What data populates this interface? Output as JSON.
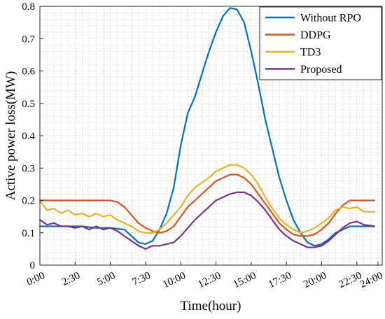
{
  "chart_data": {
    "type": "line",
    "xlabel": "Time(hour)",
    "ylabel": "Active power loss(MW)",
    "x_tick_labels": [
      "0:00",
      "2:30",
      "5:00",
      "7:30",
      "10:00",
      "12:30",
      "15:00",
      "17:30",
      "20:00",
      "22:30",
      "24:00"
    ],
    "x_tick_values": [
      0,
      2.5,
      5,
      7.5,
      10,
      12.5,
      15,
      17.5,
      20,
      22.5,
      24
    ],
    "xlim": [
      0,
      24.3
    ],
    "ylim": [
      0,
      0.8
    ],
    "y_tick_labels": [
      "0",
      "0.1",
      "0.2",
      "0.3",
      "0.4",
      "0.5",
      "0.6",
      "0.7",
      "0.8"
    ],
    "y_tick_values": [
      0,
      0.1,
      0.2,
      0.3,
      0.4,
      0.5,
      0.6,
      0.7,
      0.8
    ],
    "grid": "dotted",
    "legend_position": "top-right",
    "series": [
      {
        "name": "Without RPO",
        "color": "#0072BD",
        "x": [
          0,
          1,
          2,
          3,
          4,
          5,
          6,
          6.5,
          7,
          7.5,
          8,
          8.5,
          9,
          9.5,
          10,
          10.5,
          11,
          11.5,
          12,
          12.5,
          13,
          13.5,
          14,
          14.5,
          15,
          15.5,
          16,
          16.5,
          17,
          17.5,
          18,
          18.5,
          19,
          19.5,
          20,
          20.5,
          21,
          22,
          23,
          23.75
        ],
        "values": [
          0.12,
          0.12,
          0.12,
          0.12,
          0.115,
          0.115,
          0.11,
          0.09,
          0.07,
          0.065,
          0.075,
          0.11,
          0.16,
          0.24,
          0.37,
          0.47,
          0.52,
          0.59,
          0.66,
          0.72,
          0.77,
          0.795,
          0.79,
          0.75,
          0.66,
          0.56,
          0.45,
          0.36,
          0.27,
          0.2,
          0.14,
          0.1,
          0.07,
          0.06,
          0.065,
          0.08,
          0.1,
          0.12,
          0.12,
          0.12
        ]
      },
      {
        "name": "DDPG",
        "color": "#D95319",
        "x": [
          0,
          1,
          2,
          3,
          4,
          5,
          5.5,
          6,
          6.5,
          7,
          7.5,
          8,
          8.5,
          9,
          9.5,
          10,
          10.5,
          11,
          11.5,
          12,
          12.5,
          13,
          13.5,
          14,
          14.5,
          15,
          15.5,
          16,
          16.5,
          17,
          17.5,
          18,
          18.5,
          19,
          19.5,
          20,
          20.5,
          21,
          21.5,
          22,
          23,
          23.75
        ],
        "values": [
          0.2,
          0.2,
          0.2,
          0.2,
          0.2,
          0.2,
          0.195,
          0.18,
          0.155,
          0.13,
          0.115,
          0.105,
          0.1,
          0.105,
          0.12,
          0.15,
          0.18,
          0.2,
          0.22,
          0.24,
          0.26,
          0.27,
          0.28,
          0.28,
          0.27,
          0.25,
          0.22,
          0.19,
          0.16,
          0.13,
          0.11,
          0.095,
          0.09,
          0.09,
          0.095,
          0.11,
          0.13,
          0.16,
          0.185,
          0.2,
          0.2,
          0.2
        ]
      },
      {
        "name": "TD3",
        "color": "#EDB120",
        "x": [
          0,
          0.5,
          1,
          1.5,
          2,
          2.5,
          3,
          3.5,
          4,
          4.5,
          5,
          5.5,
          6,
          6.5,
          7,
          7.5,
          8,
          8.5,
          9,
          9.5,
          10,
          10.5,
          11,
          11.5,
          12,
          12.5,
          13,
          13.5,
          14,
          14.5,
          15,
          15.5,
          16,
          16.5,
          17,
          17.5,
          18,
          18.5,
          19,
          19.5,
          20,
          20.5,
          21,
          21.5,
          22,
          22.5,
          23,
          23.75
        ],
        "values": [
          0.2,
          0.17,
          0.175,
          0.16,
          0.17,
          0.155,
          0.16,
          0.15,
          0.16,
          0.15,
          0.155,
          0.14,
          0.13,
          0.12,
          0.105,
          0.1,
          0.1,
          0.11,
          0.13,
          0.155,
          0.18,
          0.215,
          0.24,
          0.255,
          0.27,
          0.29,
          0.3,
          0.31,
          0.31,
          0.3,
          0.28,
          0.25,
          0.21,
          0.175,
          0.145,
          0.125,
          0.11,
          0.1,
          0.105,
          0.115,
          0.13,
          0.145,
          0.17,
          0.18,
          0.175,
          0.18,
          0.165,
          0.165
        ]
      },
      {
        "name": "Proposed",
        "color": "#7E2F8E",
        "x": [
          0,
          0.5,
          1,
          1.5,
          2,
          2.5,
          3,
          3.5,
          4,
          4.5,
          5,
          5.5,
          6,
          6.5,
          7,
          7.5,
          8,
          8.5,
          9,
          9.5,
          10,
          10.5,
          11,
          11.5,
          12,
          12.5,
          13,
          13.5,
          14,
          14.5,
          15,
          15.5,
          16,
          16.5,
          17,
          17.5,
          18,
          18.5,
          19,
          19.5,
          20,
          20.5,
          21,
          21.5,
          22,
          22.5,
          23,
          23.75
        ],
        "values": [
          0.14,
          0.125,
          0.13,
          0.12,
          0.12,
          0.115,
          0.12,
          0.11,
          0.12,
          0.11,
          0.115,
          0.105,
          0.09,
          0.075,
          0.06,
          0.05,
          0.06,
          0.06,
          0.065,
          0.07,
          0.09,
          0.115,
          0.14,
          0.16,
          0.18,
          0.2,
          0.21,
          0.22,
          0.225,
          0.225,
          0.215,
          0.195,
          0.17,
          0.14,
          0.11,
          0.09,
          0.075,
          0.065,
          0.055,
          0.055,
          0.06,
          0.075,
          0.095,
          0.115,
          0.13,
          0.135,
          0.125,
          0.12
        ]
      }
    ]
  }
}
